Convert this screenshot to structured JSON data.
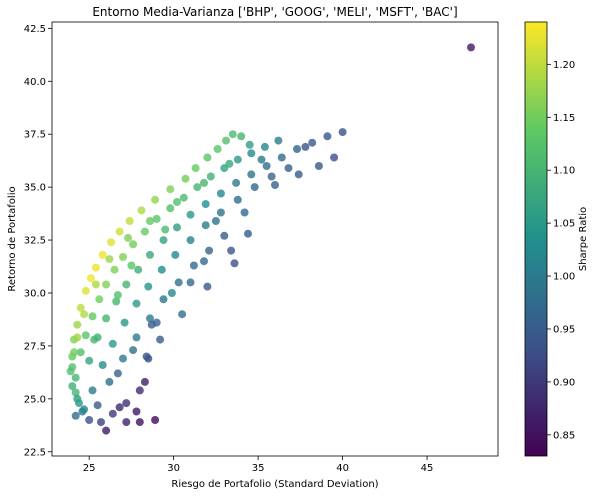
{
  "chart_data": {
    "type": "scatter",
    "title": "Entorno Media-Varianza ['BHP', 'GOOG', 'MELI', 'MSFT', 'BAC']",
    "xlabel": "Riesgo de Portafolio (Standard Deviation)",
    "ylabel": "Retorno de Portafolio",
    "xlim": [
      22.8,
      49.2
    ],
    "ylim": [
      22.3,
      42.8
    ],
    "x_ticks": [
      "25",
      "30",
      "35",
      "40",
      "45"
    ],
    "y_ticks": [
      "22.5",
      "25.0",
      "27.5",
      "30.0",
      "32.5",
      "35.0",
      "37.5",
      "40.0",
      "42.5"
    ],
    "colorbar": {
      "label": "Sharpe Ratio",
      "range": [
        0.83,
        1.24
      ],
      "ticks": [
        "0.85",
        "0.90",
        "0.95",
        "1.00",
        "1.05",
        "1.10",
        "1.15",
        "1.20"
      ],
      "colormap": "viridis",
      "stops": [
        "#440154",
        "#3b528b",
        "#21908d",
        "#5dc963",
        "#fde725"
      ]
    },
    "marker_alpha": 0.8,
    "grid": false,
    "series": [
      {
        "points": [
          [
            24.0,
            26.5,
            1.12
          ],
          [
            24.0,
            27.0,
            1.14
          ],
          [
            24.1,
            27.8,
            1.16
          ],
          [
            24.3,
            28.5,
            1.18
          ],
          [
            24.5,
            29.3,
            1.2
          ],
          [
            24.8,
            30.1,
            1.22
          ],
          [
            25.1,
            30.7,
            1.23
          ],
          [
            25.4,
            31.2,
            1.23
          ],
          [
            25.8,
            31.8,
            1.23
          ],
          [
            26.3,
            32.4,
            1.22
          ],
          [
            26.8,
            32.9,
            1.21
          ],
          [
            27.4,
            33.4,
            1.2
          ],
          [
            28.1,
            33.9,
            1.19
          ],
          [
            28.9,
            34.4,
            1.17
          ],
          [
            29.8,
            34.9,
            1.16
          ],
          [
            30.7,
            35.4,
            1.15
          ],
          [
            31.3,
            35.9,
            1.14
          ],
          [
            32.0,
            36.4,
            1.13
          ],
          [
            32.6,
            36.8,
            1.13
          ],
          [
            33.1,
            37.2,
            1.12
          ],
          [
            33.5,
            37.5,
            1.11
          ],
          [
            34.0,
            37.4,
            1.1
          ],
          [
            24.2,
            25.3,
            1.1
          ],
          [
            24.4,
            24.8,
            1.05
          ],
          [
            24.6,
            24.4,
            1.0
          ],
          [
            24.2,
            26.0,
            1.1
          ],
          [
            24.5,
            27.2,
            1.12
          ],
          [
            24.8,
            28.0,
            1.13
          ],
          [
            25.2,
            28.9,
            1.14
          ],
          [
            25.6,
            29.7,
            1.15
          ],
          [
            26.0,
            30.4,
            1.16
          ],
          [
            26.5,
            31.1,
            1.16
          ],
          [
            27.0,
            31.7,
            1.16
          ],
          [
            27.6,
            32.3,
            1.15
          ],
          [
            28.3,
            32.9,
            1.14
          ],
          [
            29.0,
            33.5,
            1.13
          ],
          [
            29.8,
            34.0,
            1.12
          ],
          [
            30.6,
            34.5,
            1.11
          ],
          [
            31.4,
            35.0,
            1.1
          ],
          [
            32.2,
            35.5,
            1.09
          ],
          [
            33.0,
            35.9,
            1.07
          ],
          [
            33.8,
            36.3,
            1.05
          ],
          [
            34.6,
            36.6,
            1.03
          ],
          [
            35.4,
            36.9,
            1.02
          ],
          [
            36.2,
            37.2,
            1.0
          ],
          [
            25.0,
            26.8,
            1.07
          ],
          [
            25.5,
            27.9,
            1.09
          ],
          [
            26.0,
            28.8,
            1.1
          ],
          [
            26.6,
            29.6,
            1.1
          ],
          [
            27.2,
            30.4,
            1.1
          ],
          [
            27.9,
            31.1,
            1.09
          ],
          [
            28.6,
            31.8,
            1.08
          ],
          [
            29.4,
            32.5,
            1.07
          ],
          [
            30.2,
            33.1,
            1.06
          ],
          [
            31.0,
            33.7,
            1.05
          ],
          [
            31.9,
            34.2,
            1.03
          ],
          [
            32.8,
            34.7,
            1.02
          ],
          [
            33.7,
            35.2,
            1.0
          ],
          [
            34.6,
            35.6,
            0.99
          ],
          [
            35.5,
            36.0,
            0.98
          ],
          [
            36.4,
            36.4,
            0.97
          ],
          [
            37.3,
            36.8,
            0.96
          ],
          [
            38.2,
            37.1,
            0.95
          ],
          [
            39.1,
            37.4,
            0.94
          ],
          [
            40.0,
            37.6,
            0.93
          ],
          [
            25.2,
            25.4,
            1.0
          ],
          [
            25.8,
            26.6,
            1.03
          ],
          [
            26.4,
            27.6,
            1.05
          ],
          [
            27.1,
            28.6,
            1.05
          ],
          [
            27.8,
            29.5,
            1.05
          ],
          [
            28.5,
            30.3,
            1.04
          ],
          [
            29.3,
            31.1,
            1.03
          ],
          [
            30.1,
            31.8,
            1.02
          ],
          [
            31.0,
            32.5,
            1.01
          ],
          [
            31.9,
            33.2,
            1.0
          ],
          [
            32.8,
            33.8,
            0.99
          ],
          [
            33.8,
            34.4,
            0.98
          ],
          [
            34.8,
            35.0,
            0.97
          ],
          [
            35.8,
            35.5,
            0.96
          ],
          [
            36.8,
            35.9,
            0.95
          ],
          [
            25.5,
            24.7,
            0.95
          ],
          [
            26.2,
            25.8,
            0.98
          ],
          [
            27.0,
            26.9,
            1.0
          ],
          [
            27.8,
            27.9,
            1.0
          ],
          [
            28.6,
            28.8,
            1.0
          ],
          [
            29.4,
            29.7,
            0.99
          ],
          [
            30.3,
            30.5,
            0.98
          ],
          [
            31.2,
            31.3,
            0.97
          ],
          [
            32.1,
            32.0,
            0.96
          ],
          [
            33.0,
            32.7,
            0.95
          ],
          [
            25.0,
            24.0,
            0.93
          ],
          [
            25.7,
            23.9,
            0.91
          ],
          [
            26.4,
            24.3,
            0.9
          ],
          [
            27.2,
            24.8,
            0.89
          ],
          [
            28.0,
            25.4,
            0.88
          ],
          [
            26.0,
            23.5,
            0.86
          ],
          [
            27.8,
            24.4,
            0.86
          ],
          [
            28.3,
            25.8,
            0.87
          ],
          [
            28.9,
            24.0,
            0.84
          ],
          [
            28.0,
            23.9,
            0.85
          ],
          [
            27.2,
            23.9,
            0.87
          ],
          [
            26.8,
            24.6,
            0.88
          ],
          [
            28.5,
            26.9,
            0.92
          ],
          [
            28.7,
            28.5,
            0.95
          ],
          [
            29.0,
            28.6,
            0.96
          ],
          [
            31.0,
            30.5,
            0.97
          ],
          [
            31.8,
            31.5,
            0.97
          ],
          [
            33.4,
            32.0,
            0.94
          ],
          [
            32.5,
            33.4,
            0.99
          ],
          [
            34.2,
            33.8,
            0.97
          ],
          [
            36.0,
            35.1,
            0.96
          ],
          [
            37.4,
            35.6,
            0.95
          ],
          [
            38.6,
            36.0,
            0.94
          ],
          [
            39.5,
            36.4,
            0.93
          ],
          [
            37.8,
            36.9,
            0.94
          ],
          [
            35.2,
            36.3,
            1.0
          ],
          [
            34.5,
            37.0,
            1.06
          ],
          [
            33.3,
            36.1,
            1.08
          ],
          [
            31.8,
            35.2,
            1.1
          ],
          [
            30.2,
            34.3,
            1.12
          ],
          [
            28.6,
            33.4,
            1.14
          ],
          [
            27.3,
            32.6,
            1.16
          ],
          [
            26.2,
            31.6,
            1.18
          ],
          [
            25.4,
            30.4,
            1.19
          ],
          [
            24.7,
            29.0,
            1.19
          ],
          [
            24.3,
            27.9,
            1.18
          ],
          [
            24.1,
            27.2,
            1.15
          ],
          [
            23.9,
            26.3,
            1.12
          ],
          [
            24.0,
            25.6,
            1.09
          ],
          [
            24.3,
            25.0,
            1.06
          ],
          [
            24.7,
            24.5,
            1.02
          ],
          [
            24.2,
            24.2,
            0.98
          ],
          [
            25.3,
            27.8,
            1.1
          ],
          [
            26.7,
            29.9,
            1.12
          ],
          [
            27.5,
            31.3,
            1.13
          ],
          [
            29.5,
            33.0,
            1.11
          ],
          [
            29.9,
            30.0,
            1.02
          ],
          [
            30.5,
            29.0,
            0.98
          ],
          [
            27.6,
            27.3,
            0.98
          ],
          [
            26.7,
            26.2,
            0.96
          ],
          [
            29.2,
            27.8,
            0.95
          ],
          [
            28.4,
            27.0,
            0.94
          ],
          [
            32.0,
            30.3,
            0.94
          ],
          [
            33.6,
            31.4,
            0.93
          ],
          [
            34.4,
            32.8,
            0.95
          ],
          [
            47.6,
            41.6,
            0.86
          ]
        ]
      }
    ]
  }
}
